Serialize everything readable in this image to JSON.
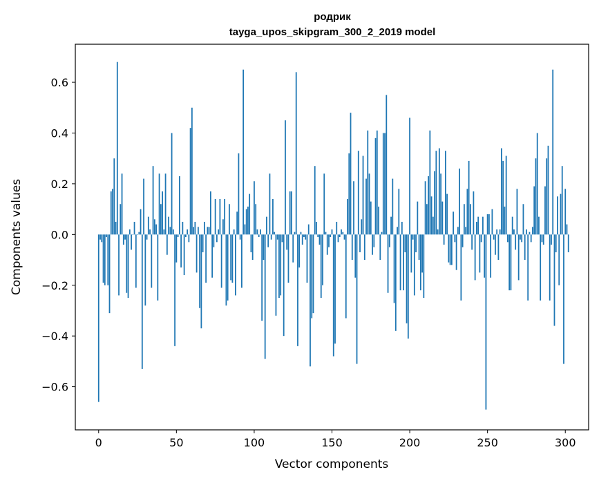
{
  "chart_data": {
    "type": "bar",
    "title_line1": "родрик",
    "title_line2": "tayga_upos_skipgram_300_2_2019 model",
    "xlabel": "Vector components",
    "ylabel": "Components values",
    "xlim": [
      -15,
      315
    ],
    "ylim": [
      -0.77,
      0.75
    ],
    "x_ticks": [
      {
        "value": 0,
        "label": "0"
      },
      {
        "value": 50,
        "label": "50"
      },
      {
        "value": 100,
        "label": "100"
      },
      {
        "value": 150,
        "label": "150"
      },
      {
        "value": 200,
        "label": "200"
      },
      {
        "value": 250,
        "label": "250"
      },
      {
        "value": 300,
        "label": "300"
      }
    ],
    "y_ticks": [
      {
        "value": -0.6,
        "label": "−0.6"
      },
      {
        "value": -0.4,
        "label": "−0.4"
      },
      {
        "value": -0.2,
        "label": "−0.2"
      },
      {
        "value": 0.0,
        "label": "0.0"
      },
      {
        "value": 0.2,
        "label": "0.2"
      },
      {
        "value": 0.4,
        "label": "0.4"
      },
      {
        "value": 0.6,
        "label": "0.6"
      }
    ],
    "bar_color": "#1f77b4",
    "values": [
      -0.66,
      -0.02,
      -0.03,
      -0.19,
      -0.2,
      -0.01,
      -0.2,
      -0.31,
      0.17,
      0.18,
      0.3,
      0.05,
      0.68,
      -0.24,
      0.12,
      0.24,
      -0.04,
      -0.02,
      -0.23,
      -0.25,
      0.02,
      -0.06,
      0.0,
      0.05,
      -0.21,
      0.0,
      0.01,
      0.1,
      -0.53,
      0.22,
      -0.28,
      -0.02,
      0.07,
      0.02,
      -0.21,
      0.27,
      0.06,
      0.04,
      -0.26,
      0.24,
      0.12,
      0.17,
      0.02,
      0.24,
      -0.08,
      0.07,
      0.03,
      0.4,
      0.02,
      -0.44,
      -0.11,
      -0.01,
      0.23,
      -0.13,
      0.05,
      -0.16,
      -0.01,
      0.02,
      -0.03,
      0.42,
      0.5,
      0.03,
      0.05,
      -0.15,
      0.03,
      -0.29,
      -0.37,
      -0.07,
      0.05,
      -0.19,
      0.03,
      0.03,
      0.17,
      -0.17,
      -0.05,
      0.14,
      -0.03,
      0.02,
      0.14,
      -0.21,
      0.06,
      0.14,
      -0.28,
      -0.26,
      0.12,
      -0.18,
      -0.19,
      0.02,
      -0.24,
      0.09,
      0.32,
      -0.02,
      -0.21,
      0.65,
      0.04,
      0.1,
      0.11,
      0.16,
      -0.07,
      -0.1,
      0.21,
      0.12,
      0.02,
      -0.01,
      0.02,
      -0.34,
      -0.1,
      -0.49,
      0.07,
      -0.05,
      0.24,
      -0.02,
      0.14,
      0.01,
      -0.32,
      -0.02,
      -0.25,
      -0.24,
      -0.03,
      -0.4,
      0.45,
      -0.06,
      -0.19,
      0.17,
      0.17,
      -0.11,
      0.01,
      0.64,
      -0.44,
      -0.13,
      0.01,
      -0.04,
      -0.01,
      -0.02,
      -0.19,
      0.04,
      -0.52,
      -0.33,
      -0.31,
      0.27,
      0.05,
      -0.01,
      -0.04,
      -0.25,
      -0.2,
      0.24,
      0.01,
      -0.08,
      -0.05,
      -0.01,
      0.02,
      -0.48,
      -0.43,
      0.05,
      -0.03,
      -0.01,
      0.02,
      0.01,
      -0.02,
      -0.33,
      0.14,
      0.32,
      0.48,
      -0.1,
      0.21,
      -0.17,
      -0.51,
      0.33,
      -0.07,
      0.06,
      0.31,
      -0.1,
      0.22,
      0.41,
      0.24,
      0.13,
      -0.08,
      -0.05,
      0.38,
      0.41,
      0.11,
      -0.1,
      0.01,
      0.4,
      0.4,
      0.55,
      -0.23,
      -0.05,
      0.07,
      0.22,
      -0.27,
      -0.38,
      0.03,
      0.18,
      -0.22,
      0.05,
      -0.22,
      -0.07,
      -0.35,
      -0.41,
      0.46,
      -0.15,
      -0.02,
      -0.24,
      -0.07,
      0.13,
      -0.1,
      -0.22,
      -0.15,
      -0.25,
      0.21,
      0.12,
      0.23,
      0.41,
      0.15,
      0.07,
      0.25,
      0.33,
      0.02,
      0.34,
      0.24,
      0.13,
      -0.04,
      0.33,
      0.16,
      -0.11,
      -0.12,
      -0.12,
      0.09,
      -0.03,
      -0.14,
      0.03,
      0.26,
      -0.26,
      -0.05,
      0.12,
      0.03,
      0.18,
      0.29,
      0.12,
      -0.06,
      0.17,
      -0.18,
      0.05,
      0.07,
      -0.15,
      -0.03,
      0.07,
      -0.17,
      -0.69,
      0.08,
      0.08,
      -0.17,
      0.1,
      -0.02,
      -0.08,
      0.02,
      -0.1,
      0.02,
      0.34,
      0.29,
      0.11,
      0.31,
      -0.03,
      -0.22,
      -0.22,
      0.07,
      0.02,
      -0.06,
      0.18,
      -0.18,
      -0.02,
      -0.03,
      0.12,
      -0.1,
      0.02,
      -0.26,
      0.01,
      -0.03,
      0.03,
      0.19,
      0.3,
      0.4,
      0.07,
      -0.26,
      -0.03,
      -0.04,
      0.19,
      0.3,
      0.35,
      -0.26,
      -0.04,
      0.65,
      -0.36,
      -0.07,
      0.15,
      -0.2,
      0.16,
      0.27,
      -0.51,
      0.18,
      0.04,
      -0.07
    ]
  }
}
